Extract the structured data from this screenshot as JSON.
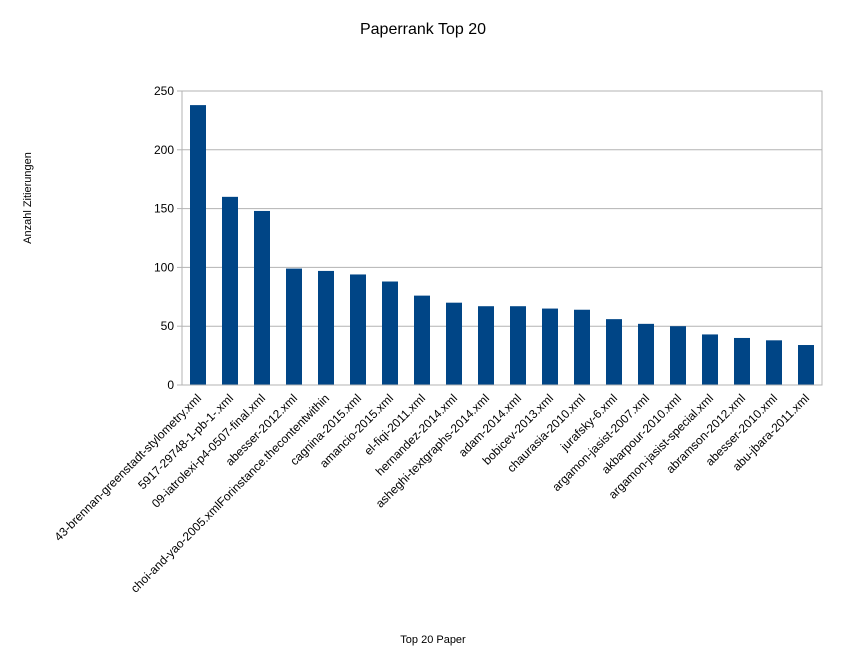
{
  "chart_data": {
    "type": "bar",
    "title": "Paperrank Top 20",
    "xlabel": "Top 20 Paper",
    "ylabel": "Anzahl Zitierungen",
    "ylim": [
      0,
      250
    ],
    "yticks": [
      0,
      50,
      100,
      150,
      200,
      250
    ],
    "grid": true,
    "legend": "none",
    "bar_color": "#004586",
    "categories": [
      "43-brennan-greenstadt-stylometry.xml",
      "5917-29748-1-pb-1-.xml",
      "09-iatrolexi-p4-0507-final.xml",
      "abesser-2012.xml",
      "choi-and-yao-2005.xmlForinstance.thecontentwithin",
      "cagnina-2015.xml",
      "amancio-2015.xml",
      "el-fiqi-2011.xml",
      "hernandez-2014.xml",
      "asheghi-textgraphs-2014.xml",
      "adam-2014.xml",
      "bobicev-2013.xml",
      "chaurasia-2010.xml",
      "jurafsky-6.xml",
      "argamon-jasist-2007.xml",
      "akbarpour-2010.xml",
      "argamon-jasist-special.xml",
      "abramson-2012.xml",
      "abesser-2010.xml",
      "abu-jbara-2011.xml"
    ],
    "values": [
      238,
      160,
      148,
      99,
      97,
      94,
      88,
      76,
      70,
      67,
      67,
      65,
      64,
      56,
      52,
      50,
      43,
      40,
      38,
      34
    ]
  }
}
